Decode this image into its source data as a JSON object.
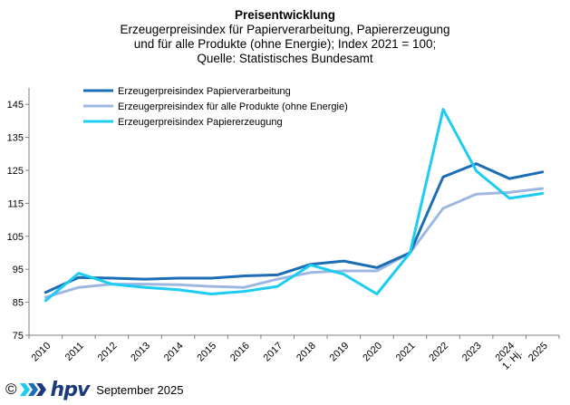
{
  "title": "Preisentwicklung",
  "subtitle_lines": [
    "Erzeugerpreisindex für Papierverarbeitung, Papiererzeugung",
    "und für alle Produkte (ohne Energie); Index 2021 = 100;",
    "Quelle: Statistisches Bundesamt"
  ],
  "footer": {
    "copyright": "©",
    "logo_text": "hpv",
    "date": "September 2025"
  },
  "colors": {
    "papierverarbeitung": "#1b6db5",
    "alle_produkte": "#9db7e0",
    "papiererzeugung": "#1ccdf1",
    "axis": "#7f7f7f",
    "logo": "#1a3a7a"
  },
  "chart_data": {
    "type": "line",
    "categories": [
      "2010",
      "2011",
      "2012",
      "2013",
      "2014",
      "2015",
      "2016",
      "2017",
      "2018",
      "2019",
      "2020",
      "2021",
      "2022",
      "2023",
      "2024",
      "2025\n1. Hj."
    ],
    "x_tick_labels": [
      [
        "2010"
      ],
      [
        "2011"
      ],
      [
        "2012"
      ],
      [
        "2013"
      ],
      [
        "2014"
      ],
      [
        "2015"
      ],
      [
        "2016"
      ],
      [
        "2017"
      ],
      [
        "2018"
      ],
      [
        "2019"
      ],
      [
        "2020"
      ],
      [
        "2021"
      ],
      [
        "2022"
      ],
      [
        "2023"
      ],
      [
        "2024",
        "1. Hj."
      ],
      [
        "2025"
      ]
    ],
    "ylim": [
      75,
      150
    ],
    "yticks": [
      75,
      85,
      95,
      105,
      115,
      125,
      135,
      145
    ],
    "legend_position": "top-left",
    "series": [
      {
        "name": "Erzeugerpreisindex Papierverarbeitung",
        "color_key": "papierverarbeitung",
        "values": [
          88,
          92.5,
          92.3,
          92,
          92.3,
          92.3,
          93,
          93.3,
          96.5,
          97.5,
          95.5,
          100,
          123,
          127,
          122.5,
          124.5
        ]
      },
      {
        "name": "Erzeugerpreisindex für alle Produkte (ohne Energie)",
        "color_key": "alle_produkte",
        "values": [
          86.5,
          89.5,
          90.5,
          90.5,
          90.3,
          89.8,
          89.5,
          92,
          94,
          94.5,
          94.5,
          100,
          113.5,
          117.8,
          118.3,
          119.5
        ]
      },
      {
        "name": "Erzeugerpreisindex Papiererzeugung",
        "color_key": "papiererzeugung",
        "values": [
          85.5,
          93.8,
          90.5,
          89.5,
          88.8,
          87.5,
          88.3,
          89.8,
          96.3,
          93.5,
          87.5,
          100,
          143.5,
          124.8,
          116.5,
          118
        ]
      }
    ]
  }
}
